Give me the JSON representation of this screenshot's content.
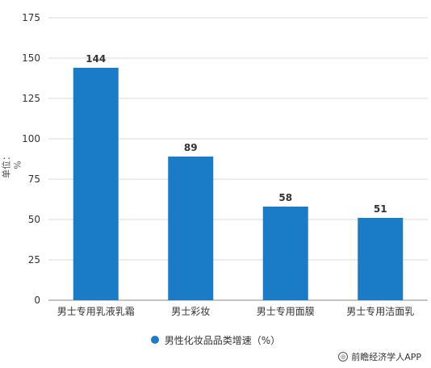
{
  "chart_data": {
    "type": "bar",
    "title": "",
    "xlabel": "",
    "ylabel": "单位：%",
    "categories": [
      "男士专用乳液乳霜",
      "男士彩妆",
      "男士专用面膜",
      "男士专用洁面乳"
    ],
    "series": [
      {
        "name": "男性化妆品品类增速（%）",
        "values": [
          144,
          89,
          58,
          51
        ],
        "color": "#1a7bc6"
      }
    ],
    "data_labels": [
      "144",
      "89",
      "58",
      "51"
    ],
    "ylim": [
      0,
      175
    ],
    "yticks": [
      0,
      25,
      50,
      75,
      100,
      125,
      150,
      175
    ],
    "ytick_labels": [
      "0",
      "25",
      "50",
      "75",
      "100",
      "125",
      "150",
      "175"
    ],
    "grid": true,
    "legend": "bottom-center"
  },
  "source_credit": "前瞻经济学人APP",
  "colors": {
    "bar": "#1a7bc6",
    "grid": "#d9d9d9",
    "axis": "#888888"
  }
}
